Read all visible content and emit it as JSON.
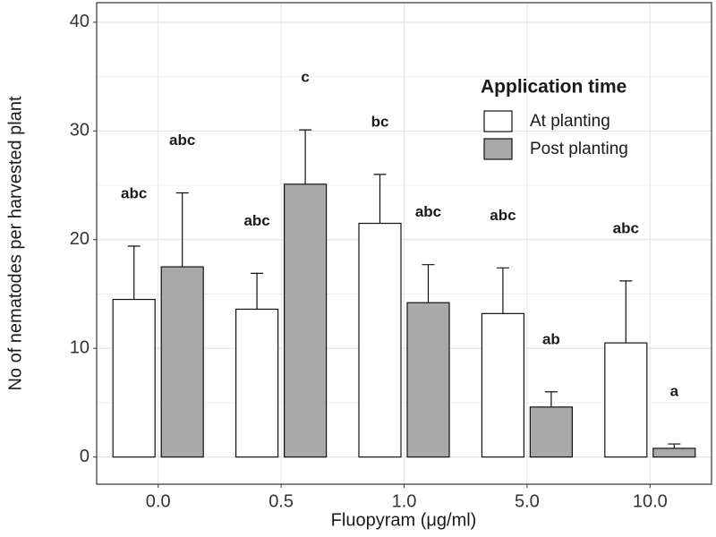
{
  "chart_data": {
    "type": "bar",
    "x_label": "Fluopyram (μg/ml)",
    "y_label": "No of nematodes per harvested plant",
    "categories": [
      "0.0",
      "0.5",
      "1.0",
      "5.0",
      "10.0"
    ],
    "series": [
      {
        "name": "At planting",
        "color": "#ffffff",
        "values": [
          14.5,
          13.6,
          21.5,
          13.2,
          10.5
        ],
        "errors": [
          4.9,
          3.3,
          4.5,
          4.2,
          5.7
        ],
        "letters": [
          "abc",
          "abc",
          "bc",
          "abc",
          "abc"
        ]
      },
      {
        "name": "Post planting",
        "color": "#a9a9a9",
        "values": [
          17.5,
          25.1,
          14.2,
          4.6,
          0.8
        ],
        "errors": [
          6.8,
          5.0,
          3.5,
          1.4,
          0.4
        ],
        "letters": [
          "abc",
          "c",
          "abc",
          "ab",
          "a"
        ]
      }
    ],
    "legend_title": "Application time",
    "legend_position": "top-right",
    "ylim": [
      -2.5,
      41.8
    ],
    "yticks": [
      0,
      10,
      20,
      30,
      40
    ],
    "grid": true
  }
}
